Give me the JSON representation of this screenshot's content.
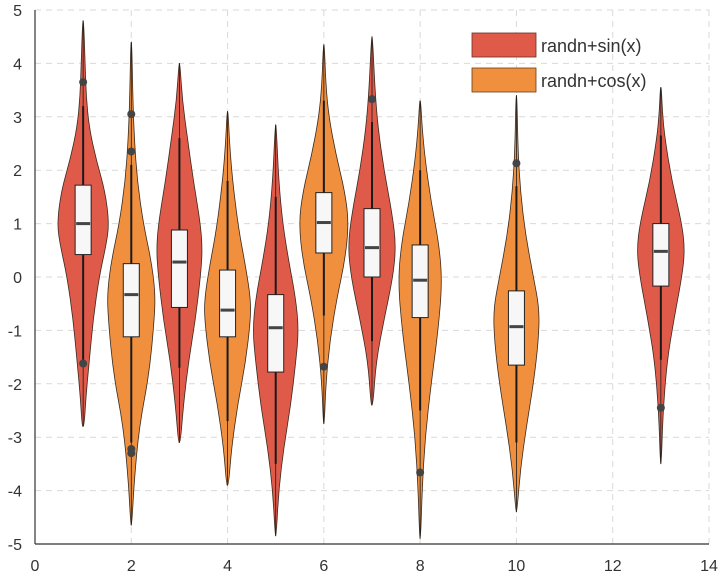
{
  "chart_data": {
    "type": "violin",
    "xlim": [
      0,
      14
    ],
    "ylim": [
      -5,
      5
    ],
    "x_ticks": [
      "0",
      "2",
      "4",
      "6",
      "8",
      "10",
      "12",
      "14"
    ],
    "y_ticks": [
      "5",
      "4",
      "3",
      "2",
      "1",
      "0",
      "-1",
      "-2",
      "-3",
      "-4",
      "-5"
    ],
    "grid": true,
    "legend_position": "top-right",
    "series": [
      {
        "name": "randn+sin(x)",
        "color": "#e05a4a"
      },
      {
        "name": "randn+cos(x)",
        "color": "#f0903e"
      }
    ],
    "violins": [
      {
        "x": 1,
        "series": 0,
        "min": -2.8,
        "max": 4.8,
        "q1": 0.42,
        "median": 1.0,
        "q3": 1.72,
        "whisker_low": -1.55,
        "whisker_high": 3.2,
        "outliers": [
          3.65,
          -1.62
        ],
        "density": [
          [
            -2.8,
            0.01
          ],
          [
            -2.2,
            0.03
          ],
          [
            -1.6,
            0.06
          ],
          [
            -0.8,
            0.1
          ],
          [
            0,
            0.16
          ],
          [
            0.6,
            0.23
          ],
          [
            1,
            0.26
          ],
          [
            1.6,
            0.22
          ],
          [
            2.2,
            0.13
          ],
          [
            2.8,
            0.06
          ],
          [
            3.4,
            0.03
          ],
          [
            4.0,
            0.02
          ],
          [
            4.8,
            0.005
          ]
        ]
      },
      {
        "x": 2,
        "series": 1,
        "min": -4.65,
        "max": 4.4,
        "q1": -1.12,
        "median": -0.33,
        "q3": 0.25,
        "whisker_low": -3.1,
        "whisker_high": 2.1,
        "outliers": [
          3.05,
          2.35,
          -3.22,
          -3.3
        ],
        "density": [
          [
            -4.65,
            0.005
          ],
          [
            -3.8,
            0.03
          ],
          [
            -2.8,
            0.08
          ],
          [
            -1.8,
            0.18
          ],
          [
            -0.8,
            0.23
          ],
          [
            -0.3,
            0.24
          ],
          [
            0.3,
            0.2
          ],
          [
            1.0,
            0.12
          ],
          [
            1.8,
            0.06
          ],
          [
            2.6,
            0.03
          ],
          [
            3.4,
            0.015
          ],
          [
            4.4,
            0.005
          ]
        ]
      },
      {
        "x": 3,
        "series": 0,
        "min": -3.1,
        "max": 4.0,
        "q1": -0.57,
        "median": 0.28,
        "q3": 0.88,
        "whisker_low": -1.7,
        "whisker_high": 2.6,
        "outliers": [],
        "density": [
          [
            -3.1,
            0.01
          ],
          [
            -2.4,
            0.04
          ],
          [
            -1.6,
            0.09
          ],
          [
            -0.8,
            0.16
          ],
          [
            0,
            0.21
          ],
          [
            0.5,
            0.23
          ],
          [
            1.0,
            0.21
          ],
          [
            1.8,
            0.14
          ],
          [
            2.6,
            0.08
          ],
          [
            3.3,
            0.03
          ],
          [
            4.0,
            0.005
          ]
        ]
      },
      {
        "x": 4,
        "series": 1,
        "min": -3.9,
        "max": 3.1,
        "q1": -1.12,
        "median": -0.62,
        "q3": 0.13,
        "whisker_low": -2.7,
        "whisker_high": 1.8,
        "outliers": [],
        "density": [
          [
            -3.9,
            0.01
          ],
          [
            -3.2,
            0.04
          ],
          [
            -2.4,
            0.1
          ],
          [
            -1.6,
            0.18
          ],
          [
            -0.8,
            0.23
          ],
          [
            -0.4,
            0.23
          ],
          [
            0.2,
            0.18
          ],
          [
            0.9,
            0.11
          ],
          [
            1.8,
            0.05
          ],
          [
            2.5,
            0.02
          ],
          [
            3.1,
            0.005
          ]
        ]
      },
      {
        "x": 5,
        "series": 0,
        "min": -4.85,
        "max": 2.85,
        "q1": -1.78,
        "median": -0.95,
        "q3": -0.33,
        "whisker_low": -3.5,
        "whisker_high": 1.5,
        "outliers": [],
        "density": [
          [
            -4.85,
            0.005
          ],
          [
            -4.0,
            0.03
          ],
          [
            -3.2,
            0.08
          ],
          [
            -2.4,
            0.15
          ],
          [
            -1.6,
            0.2
          ],
          [
            -1.0,
            0.23
          ],
          [
            -0.4,
            0.2
          ],
          [
            0.3,
            0.13
          ],
          [
            1.0,
            0.07
          ],
          [
            1.8,
            0.03
          ],
          [
            2.85,
            0.005
          ]
        ]
      },
      {
        "x": 6,
        "series": 1,
        "min": -2.75,
        "max": 4.35,
        "q1": 0.45,
        "median": 1.02,
        "q3": 1.58,
        "whisker_low": -0.72,
        "whisker_high": 3.3,
        "outliers": [
          -1.68
        ],
        "density": [
          [
            -2.75,
            0.005
          ],
          [
            -2.0,
            0.02
          ],
          [
            -1.2,
            0.06
          ],
          [
            -0.4,
            0.13
          ],
          [
            0.3,
            0.21
          ],
          [
            1.0,
            0.25
          ],
          [
            1.6,
            0.21
          ],
          [
            2.3,
            0.12
          ],
          [
            3.0,
            0.05
          ],
          [
            3.6,
            0.02
          ],
          [
            4.35,
            0.005
          ]
        ]
      },
      {
        "x": 7,
        "series": 0,
        "min": -2.4,
        "max": 4.5,
        "q1": 0.0,
        "median": 0.55,
        "q3": 1.28,
        "whisker_low": -1.2,
        "whisker_high": 2.9,
        "outliers": [
          3.33
        ],
        "density": [
          [
            -2.4,
            0.01
          ],
          [
            -1.6,
            0.04
          ],
          [
            -0.8,
            0.12
          ],
          [
            0,
            0.21
          ],
          [
            0.6,
            0.24
          ],
          [
            1.2,
            0.2
          ],
          [
            2.0,
            0.12
          ],
          [
            2.8,
            0.06
          ],
          [
            3.5,
            0.03
          ],
          [
            4.5,
            0.005
          ]
        ]
      },
      {
        "x": 8,
        "series": 1,
        "min": -4.9,
        "max": 3.3,
        "q1": -0.76,
        "median": -0.06,
        "q3": 0.6,
        "whisker_low": -2.5,
        "whisker_high": 2.0,
        "outliers": [
          -3.66
        ],
        "density": [
          [
            -4.9,
            0.005
          ],
          [
            -4.0,
            0.02
          ],
          [
            -3.0,
            0.05
          ],
          [
            -2.0,
            0.11
          ],
          [
            -1.0,
            0.18
          ],
          [
            -0.1,
            0.22
          ],
          [
            0.6,
            0.19
          ],
          [
            1.4,
            0.11
          ],
          [
            2.2,
            0.05
          ],
          [
            2.8,
            0.02
          ],
          [
            3.3,
            0.005
          ]
        ]
      },
      {
        "x": 10,
        "series": 1,
        "min": -4.4,
        "max": 3.4,
        "q1": -1.65,
        "median": -0.93,
        "q3": -0.26,
        "whisker_low": -3.1,
        "whisker_high": 1.7,
        "outliers": [
          2.13
        ],
        "density": [
          [
            -4.4,
            0.005
          ],
          [
            -3.6,
            0.04
          ],
          [
            -2.8,
            0.1
          ],
          [
            -2.0,
            0.17
          ],
          [
            -1.2,
            0.22
          ],
          [
            -0.6,
            0.23
          ],
          [
            0,
            0.17
          ],
          [
            0.8,
            0.09
          ],
          [
            1.6,
            0.04
          ],
          [
            2.4,
            0.015
          ],
          [
            3.4,
            0.005
          ]
        ]
      },
      {
        "x": 13,
        "series": 0,
        "min": -3.5,
        "max": 3.55,
        "q1": -0.17,
        "median": 0.48,
        "q3": 1.0,
        "whisker_low": -1.55,
        "whisker_high": 2.65,
        "outliers": [
          -2.45
        ],
        "density": [
          [
            -3.5,
            0.005
          ],
          [
            -2.6,
            0.02
          ],
          [
            -1.6,
            0.06
          ],
          [
            -0.8,
            0.13
          ],
          [
            0,
            0.21
          ],
          [
            0.5,
            0.24
          ],
          [
            1.0,
            0.21
          ],
          [
            1.8,
            0.11
          ],
          [
            2.6,
            0.04
          ],
          [
            3.1,
            0.015
          ],
          [
            3.55,
            0.005
          ]
        ]
      }
    ]
  }
}
